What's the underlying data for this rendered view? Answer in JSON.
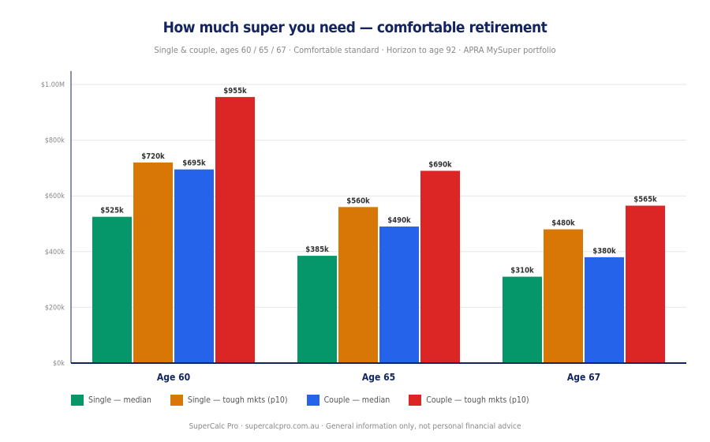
{
  "chart_data": {
    "type": "bar",
    "title": "How much super you need — comfortable retirement",
    "subtitle": "Single & couple, ages 60 / 65 / 67 · Comfortable standard · Horizon to age 92 · APRA MySuper portfolio",
    "categories": [
      "Age 60",
      "Age 65",
      "Age 67"
    ],
    "series": [
      {
        "name": "Single — median",
        "color": "#059669",
        "values": [
          525,
          385,
          310
        ],
        "labels": [
          "$525k",
          "$385k",
          "$310k"
        ]
      },
      {
        "name": "Single — tough mkts (p10)",
        "color": "#d97706",
        "values": [
          720,
          560,
          480
        ],
        "labels": [
          "$720k",
          "$560k",
          "$480k"
        ]
      },
      {
        "name": "Couple — median",
        "color": "#2563eb",
        "values": [
          695,
          490,
          380
        ],
        "labels": [
          "$695k",
          "$490k",
          "$380k"
        ]
      },
      {
        "name": "Couple — tough mkts (p10)",
        "color": "#dc2626",
        "values": [
          955,
          690,
          565
        ],
        "labels": [
          "$955k",
          "$690k",
          "$565k"
        ]
      }
    ],
    "ylim": [
      0,
      1000
    ],
    "yunit": "thousands AUD",
    "yticks": [
      0,
      200,
      400,
      600,
      800,
      1000
    ],
    "ytick_labels": [
      "$0k",
      "$200k",
      "$400k",
      "$600k",
      "$800k",
      "$1.00M"
    ],
    "grid": true,
    "legend": "bottom-left"
  },
  "footer": "SuperCalc Pro · supercalcpro.com.au · General information only, not personal financial advice"
}
